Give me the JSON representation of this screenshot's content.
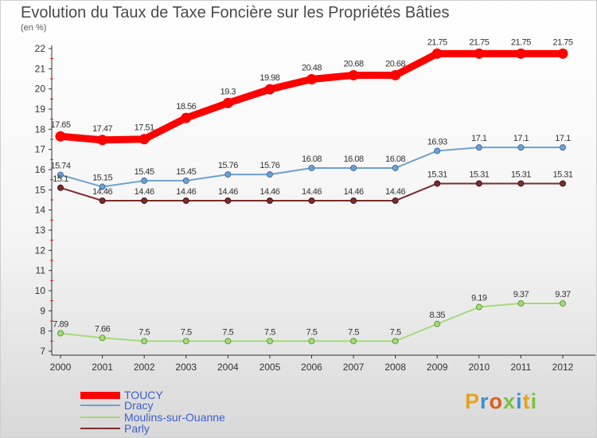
{
  "chart_data": {
    "type": "line",
    "title": "Evolution du Taux de Taxe Foncière sur les Propriétés Bâties",
    "subtitle": "(en %)",
    "x": [
      "2000",
      "2001",
      "2002",
      "2003",
      "2004",
      "2005",
      "2006",
      "2007",
      "2008",
      "2009",
      "2010",
      "2011",
      "2012"
    ],
    "ylim": [
      7,
      22
    ],
    "yticks": [
      "7",
      "8",
      "9",
      "10",
      "11",
      "12",
      "13",
      "14",
      "15",
      "16",
      "17",
      "18",
      "19",
      "20",
      "21",
      "22"
    ],
    "grid": false,
    "legend_position": "bottom-left",
    "series": [
      {
        "name": "TOUCY",
        "color": "#ff0000",
        "values": [
          17.65,
          17.47,
          17.51,
          18.56,
          19.3,
          19.98,
          20.48,
          20.68,
          20.68,
          21.75,
          21.75,
          21.75,
          21.75
        ],
        "labels": [
          "17.65",
          "17.47",
          "17.51",
          "18.56",
          "19.3",
          "19.98",
          "20.48",
          "20.68",
          "20.68",
          "21.75",
          "21.75",
          "21.75",
          "21.75"
        ]
      },
      {
        "name": "Dracy",
        "color": "#6fa0d0",
        "values": [
          15.74,
          15.15,
          15.45,
          15.45,
          15.76,
          15.76,
          16.08,
          16.08,
          16.08,
          16.93,
          17.1,
          17.1,
          17.1
        ],
        "labels": [
          "15.74",
          "15.15",
          "15.45",
          "15.45",
          "15.76",
          "15.76",
          "16.08",
          "16.08",
          "16.08",
          "16.93",
          "17.1",
          "17.1",
          "17.1"
        ]
      },
      {
        "name": "Moulins-sur-Ouanne",
        "color": "#a6d97c",
        "values": [
          7.89,
          7.66,
          7.5,
          7.5,
          7.5,
          7.5,
          7.5,
          7.5,
          7.5,
          8.35,
          9.19,
          9.37,
          9.37
        ],
        "labels": [
          "7.89",
          "7.66",
          "7.5",
          "7.5",
          "7.5",
          "7.5",
          "7.5",
          "7.5",
          "7.5",
          "8.35",
          "9.19",
          "9.37",
          "9.37"
        ]
      },
      {
        "name": "Parly",
        "color": "#7a2e2e",
        "values": [
          15.1,
          14.46,
          14.46,
          14.46,
          14.46,
          14.46,
          14.46,
          14.46,
          14.46,
          15.31,
          15.31,
          15.31,
          15.31
        ],
        "labels": [
          "15.1",
          "14.46",
          "14.46",
          "14.46",
          "14.46",
          "14.46",
          "14.46",
          "14.46",
          "14.46",
          "15.31",
          "15.31",
          "15.31",
          "15.31"
        ]
      }
    ]
  },
  "logo": {
    "letters": [
      {
        "ch": "P",
        "color": "#e8a020"
      },
      {
        "ch": "r",
        "color": "#3a8fd0"
      },
      {
        "ch": "o",
        "color": "#e05a20"
      },
      {
        "ch": "x",
        "color": "#7cc040"
      },
      {
        "ch": "i",
        "color": "#3a8fd0"
      },
      {
        "ch": "t",
        "color": "#e8a020"
      },
      {
        "ch": "i",
        "color": "#7cc040"
      }
    ]
  }
}
